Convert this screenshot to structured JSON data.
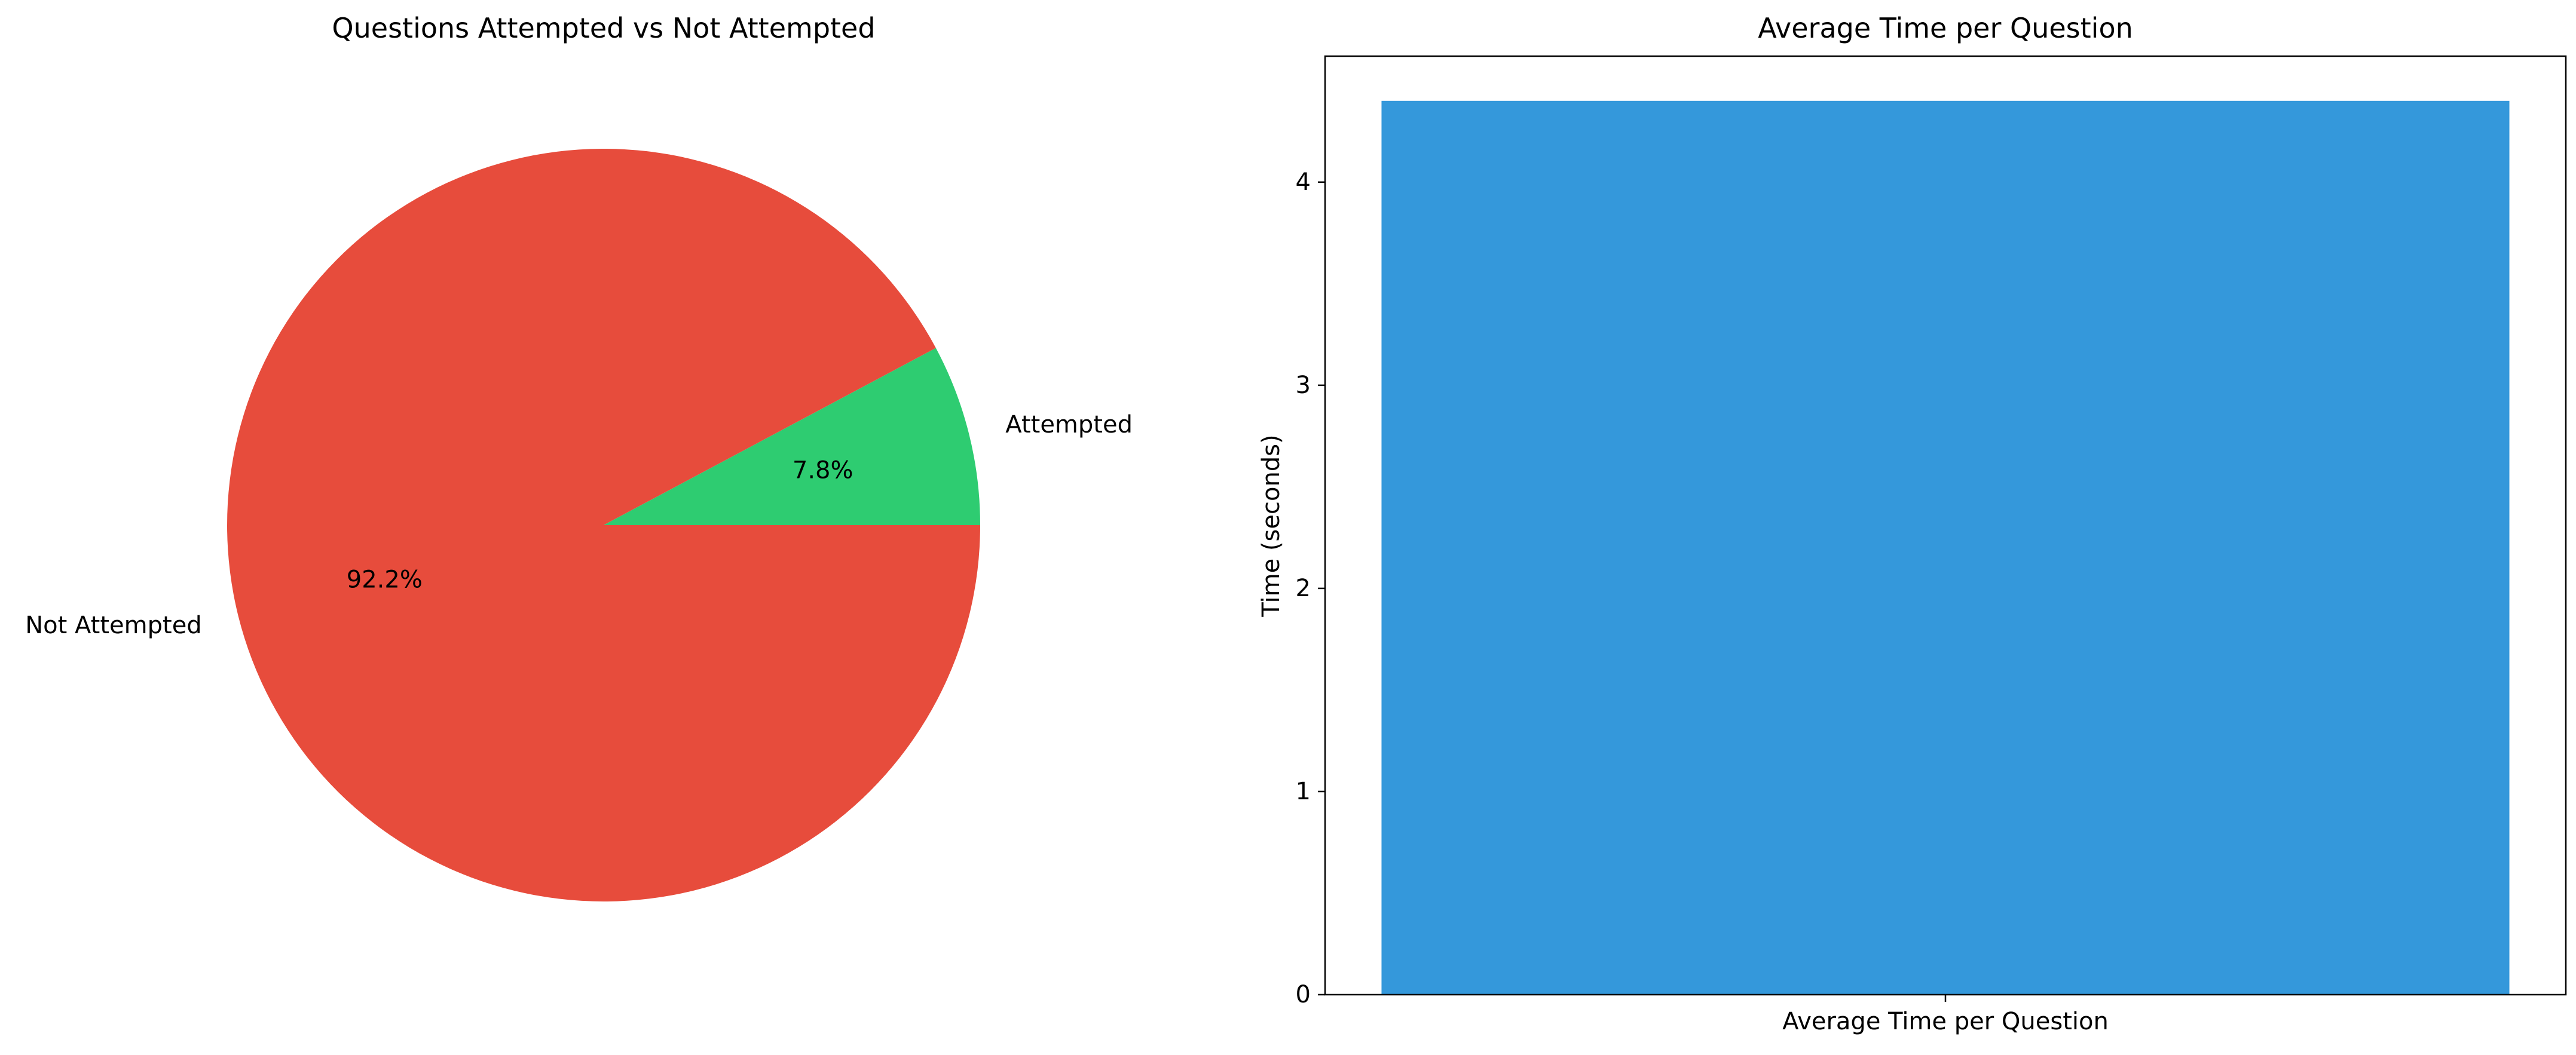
{
  "chart_data": [
    {
      "type": "pie",
      "title": "Questions Attempted vs Not Attempted",
      "slices": [
        {
          "label": "Attempted",
          "value": 7.8,
          "pct_label": "7.8%",
          "color": "#2ecc71"
        },
        {
          "label": "Not Attempted",
          "value": 92.2,
          "pct_label": "92.2%",
          "color": "#e74c3c"
        }
      ]
    },
    {
      "type": "bar",
      "title": "Average Time per Question",
      "categories": [
        "Average Time per Question"
      ],
      "values": [
        4.4
      ],
      "ylabel": "Time (seconds)",
      "xlabel": "",
      "ylim": [
        0,
        4.62
      ],
      "yticks": [
        0,
        1,
        2,
        3,
        4
      ],
      "color": "#3498db",
      "grid": false
    }
  ]
}
